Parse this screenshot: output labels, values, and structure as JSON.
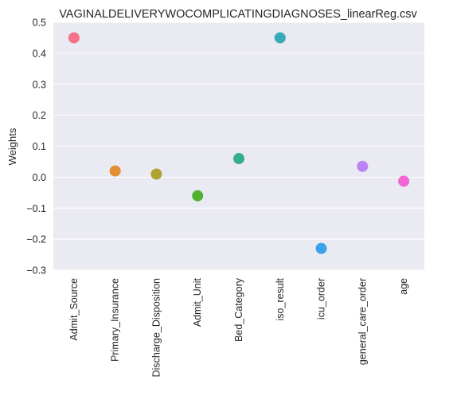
{
  "chart_data": {
    "type": "scatter",
    "title": "VAGINALDELIVERYWOCOMPLICATINGDIAGNOSES_linearReg.csv",
    "ylabel": "Weights",
    "xlabel": "",
    "ylim": [
      -0.3,
      0.5
    ],
    "yticks": [
      "−0.3",
      "−0.2",
      "−0.1",
      "0.0",
      "0.1",
      "0.2",
      "0.3",
      "0.4",
      "0.5"
    ],
    "grid": true,
    "background": "#eaeaf2",
    "points": [
      {
        "category": "Admit_Source",
        "value": 0.45,
        "color": "#f77189"
      },
      {
        "category": "Primary_Insurance",
        "value": 0.02,
        "color": "#e18f32"
      },
      {
        "category": "Discharge_Disposition",
        "value": 0.01,
        "color": "#b0a331"
      },
      {
        "category": "Admit_Unit",
        "value": -0.06,
        "color": "#50b131"
      },
      {
        "category": "Bed_Category",
        "value": 0.06,
        "color": "#36ad8c"
      },
      {
        "category": "iso_result",
        "value": 0.45,
        "color": "#38aab9"
      },
      {
        "category": "icu_order",
        "value": -0.23,
        "color": "#3ba3ec"
      },
      {
        "category": "general_care_order",
        "value": 0.035,
        "color": "#bb83f4"
      },
      {
        "category": "age",
        "value": -0.013,
        "color": "#f564d4"
      }
    ]
  }
}
